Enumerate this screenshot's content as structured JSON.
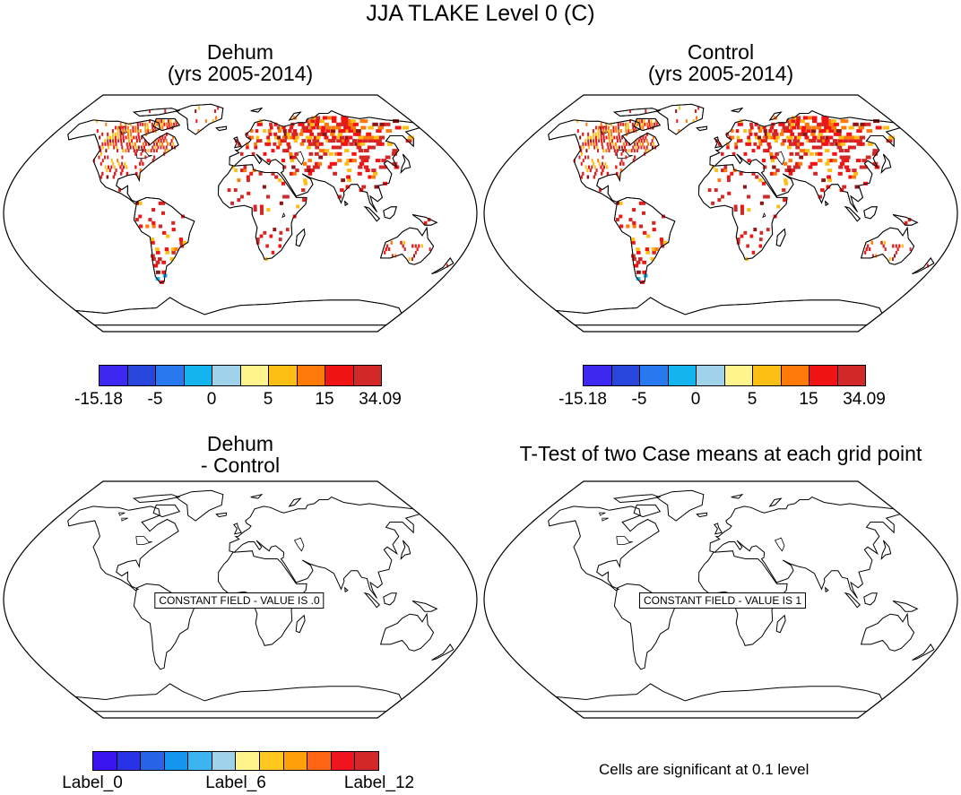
{
  "title": "JJA TLAKE Level 0 (C)",
  "panels": {
    "dehum": {
      "title_line1": "Dehum",
      "title_line2": "(yrs 2005-2014)"
    },
    "control": {
      "title_line1": "Control",
      "title_line2": "(yrs 2005-2014)"
    },
    "diff": {
      "title_line1": "Dehum",
      "title_line2": "- Control",
      "message": "CONSTANT FIELD - VALUE IS .0"
    },
    "ttest": {
      "title": "T-Test of two Case means at each grid point",
      "message": "CONSTANT FIELD - VALUE IS 1"
    }
  },
  "colorbar_top": {
    "colors": [
      "#3c28f0",
      "#2846dc",
      "#2878f0",
      "#14b4f0",
      "#a0d2ea",
      "#fff58c",
      "#ffbe14",
      "#ff7a0a",
      "#f01414",
      "#d22828"
    ],
    "labels": [
      "-15.18",
      "-5",
      "0",
      "5",
      "15",
      "34.09"
    ]
  },
  "colorbar_bottom": {
    "colors": [
      "#3c14f0",
      "#2832e6",
      "#2864e6",
      "#1496f0",
      "#3cb4f0",
      "#a0d2ea",
      "#fff58c",
      "#ffc81e",
      "#ffa00a",
      "#ff6414",
      "#f0141e",
      "#d22828"
    ],
    "labels": [
      "Label_0",
      "Label_6",
      "Label_12"
    ]
  },
  "footnote": "Cells are significant at 0.1 level",
  "icons": {
    "map": "world-map-robinson-icon"
  }
}
